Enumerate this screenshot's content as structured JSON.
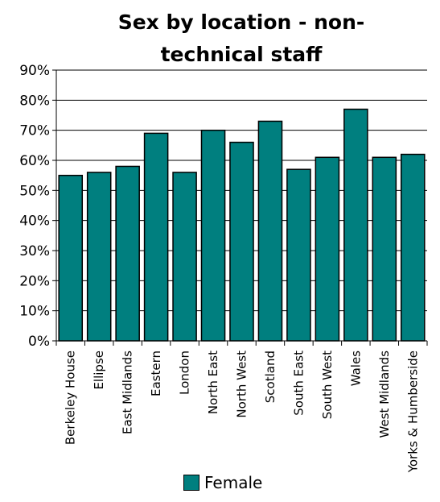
{
  "chart_data": {
    "type": "bar",
    "title": "Sex by location - non-technical staff",
    "title_lines": [
      "Sex by location - non-",
      "technical staff"
    ],
    "categories": [
      "Berkeley House",
      "Ellipse",
      "East Midlands",
      "Eastern",
      "London",
      "North East",
      "North West",
      "Scotland",
      "South East",
      "South West",
      "Wales",
      "West Midlands",
      "Yorks & Humberside"
    ],
    "series": [
      {
        "name": "Female",
        "values": [
          55,
          56,
          58,
          69,
          56,
          70,
          66,
          73,
          57,
          61,
          77,
          61,
          62
        ]
      }
    ],
    "ylim": [
      0,
      90
    ],
    "yticks": [
      "0%",
      "10%",
      "20%",
      "30%",
      "40%",
      "50%",
      "60%",
      "70%",
      "80%",
      "90%"
    ],
    "ytick_values": [
      0,
      10,
      20,
      30,
      40,
      50,
      60,
      70,
      80,
      90
    ],
    "xlabel": "",
    "ylabel": "",
    "grid": true,
    "legend": "bottom",
    "colors": {
      "bar": "#007F7F",
      "grid": "#000000"
    }
  }
}
